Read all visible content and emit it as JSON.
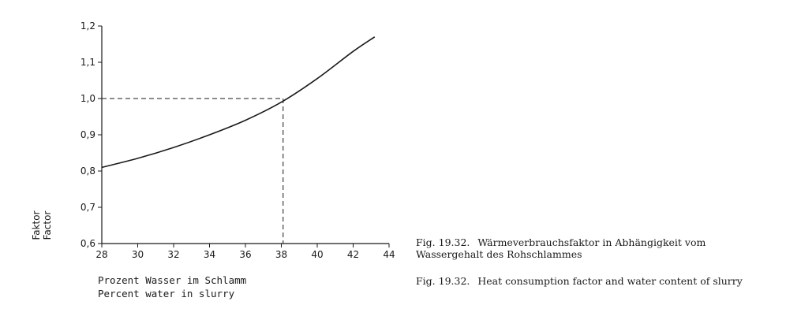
{
  "chart_data": {
    "type": "line",
    "x": [
      28,
      30,
      32,
      34,
      36,
      38,
      40,
      42,
      43.2
    ],
    "y": [
      0.81,
      0.835,
      0.865,
      0.9,
      0.94,
      0.99,
      1.055,
      1.13,
      1.17
    ],
    "xlim": [
      28,
      44
    ],
    "ylim": [
      0.6,
      1.2
    ],
    "xticks": [
      28,
      30,
      32,
      34,
      36,
      38,
      40,
      42,
      44
    ],
    "yticks": [
      "0,6",
      "0,7",
      "0,8",
      "0,9",
      "1,0",
      "1,1",
      "1,2"
    ],
    "ytick_values": [
      0.6,
      0.7,
      0.8,
      0.9,
      1.0,
      1.1,
      1.2
    ],
    "xlabel": [
      "Prozent Wasser im Schlamm",
      "Percent water in slurry"
    ],
    "ylabel": [
      "Faktor",
      "Factor"
    ],
    "reference": {
      "x": 38.1,
      "y": 1.0,
      "style": "dashed"
    },
    "grid": false
  },
  "captions": {
    "german": {
      "number": "Fig. 19.32.",
      "text": "Wärmeverbrauchsfaktor in Abhängigkeit vom Wassergehalt des Rohschlammes"
    },
    "english": {
      "number": "Fig. 19.32.",
      "text": "Heat consumption factor and water content of slurry"
    }
  }
}
